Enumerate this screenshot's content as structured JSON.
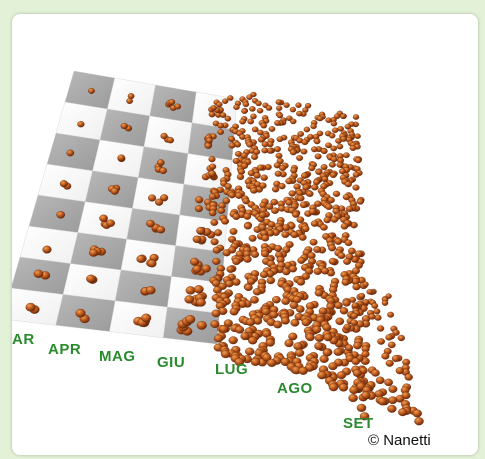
{
  "figure": {
    "months": [
      "AR",
      "APR",
      "MAG",
      "GIU",
      "LUG",
      "AGO",
      "SET"
    ],
    "credit": "© Nanetti"
  },
  "colors": {
    "page_bg": "#e3f1d6",
    "label_green": "#2a8a2e",
    "tile_light": "#f0f0f0",
    "tile_dark": "#9b9b9b",
    "egg": "#b8551d"
  }
}
